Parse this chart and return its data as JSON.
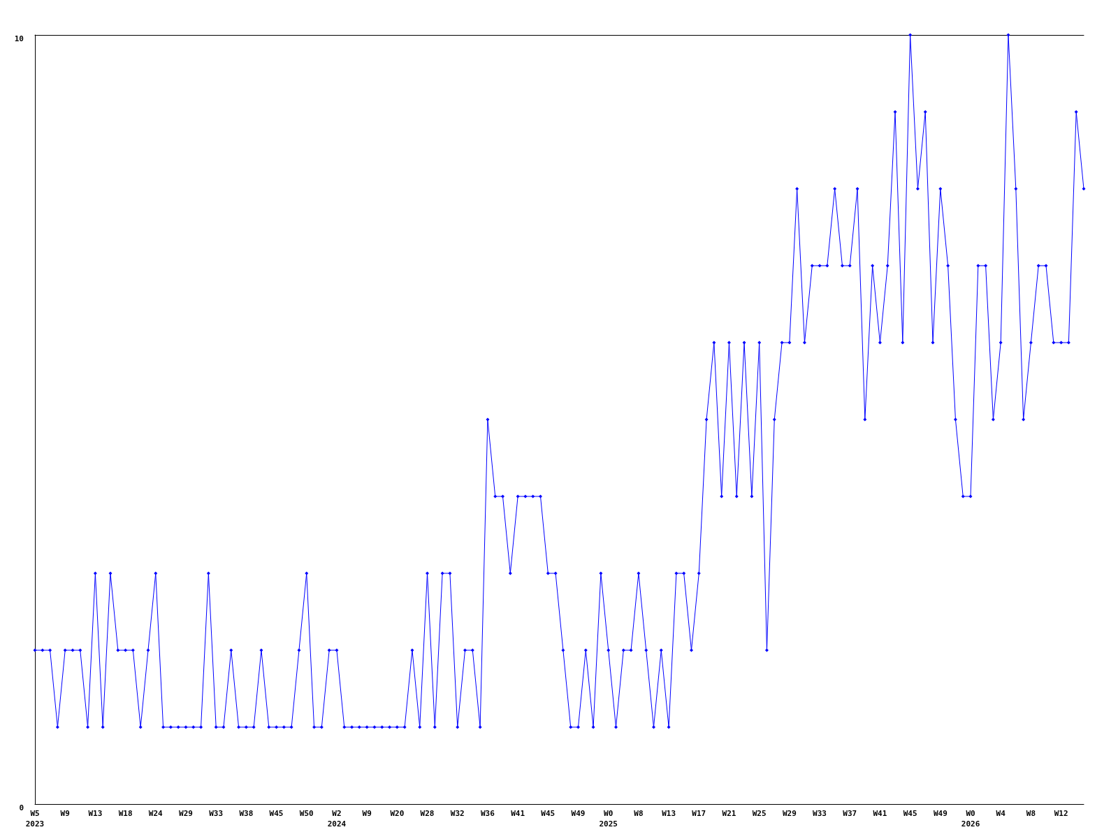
{
  "chart_data": {
    "type": "line",
    "categories": [
      "W5\n2023",
      null,
      null,
      null,
      "W9",
      null,
      null,
      null,
      "W13",
      null,
      null,
      null,
      "W18",
      null,
      null,
      null,
      "W24",
      null,
      null,
      null,
      "W29",
      null,
      null,
      null,
      "W33",
      null,
      null,
      null,
      "W38",
      null,
      null,
      null,
      "W45",
      null,
      null,
      null,
      "W50",
      null,
      null,
      null,
      "W2\n2024",
      null,
      null,
      null,
      "W9",
      null,
      null,
      null,
      "W20",
      null,
      null,
      null,
      "W28",
      null,
      null,
      null,
      "W32",
      null,
      null,
      null,
      "W36",
      null,
      null,
      null,
      "W41",
      null,
      null,
      null,
      "W45",
      null,
      null,
      null,
      "W49",
      null,
      null,
      null,
      "W0\n2025",
      null,
      null,
      null,
      "W8",
      null,
      null,
      null,
      "W13",
      null,
      null,
      null,
      "W17",
      null,
      null,
      null,
      "W21",
      null,
      null,
      null,
      "W25",
      null,
      null,
      null,
      "W29",
      null,
      null,
      null,
      "W33",
      null,
      null,
      null,
      "W37",
      null,
      null,
      null,
      "W41",
      null,
      null,
      null,
      "W45",
      null,
      null,
      null,
      "W49",
      null,
      null,
      null,
      "W0\n2026",
      null,
      null,
      null,
      "W4",
      null,
      null,
      null,
      "W8",
      null,
      null,
      null,
      "W12",
      null,
      null,
      null
    ],
    "series": [
      {
        "color": "#0000ff",
        "values": [
          2,
          2,
          2,
          1,
          2,
          2,
          2,
          1,
          3,
          1,
          3,
          2,
          2,
          2,
          1,
          2,
          3,
          1,
          1,
          1,
          1,
          1,
          1,
          3,
          1,
          1,
          2,
          1,
          1,
          1,
          2,
          1,
          1,
          1,
          1,
          2,
          3,
          1,
          1,
          2,
          2,
          1,
          1,
          1,
          1,
          1,
          1,
          1,
          1,
          1,
          2,
          1,
          3,
          1,
          3,
          3,
          1,
          2,
          2,
          1,
          5,
          4,
          4,
          3,
          4,
          4,
          4,
          4,
          3,
          3,
          2,
          1,
          1,
          2,
          1,
          3,
          2,
          1,
          2,
          2,
          3,
          2,
          1,
          2,
          1,
          3,
          3,
          2,
          3,
          5,
          6,
          4,
          6,
          4,
          6,
          4,
          6,
          2,
          5,
          6,
          6,
          8,
          6,
          7,
          7,
          7,
          8,
          7,
          7,
          8,
          5,
          7,
          6,
          7,
          9,
          6,
          10,
          8,
          9,
          6,
          8,
          7,
          5,
          4,
          4,
          7,
          7,
          5,
          6,
          10,
          8,
          5,
          6,
          7,
          7,
          6,
          6,
          6,
          9,
          8
        ]
      }
    ],
    "ylim": [
      0,
      10
    ],
    "yticks": [
      0,
      10
    ],
    "marker": "diamond",
    "line_style": "solid"
  }
}
